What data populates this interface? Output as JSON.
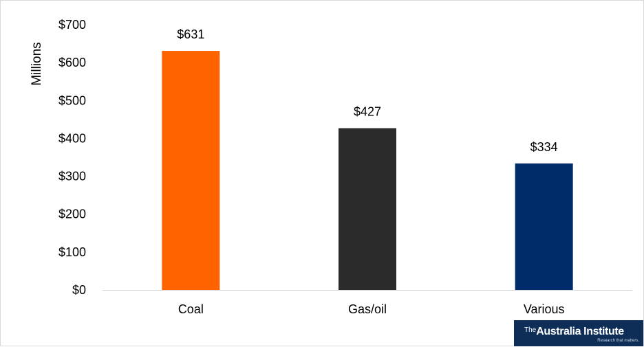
{
  "chart_data": {
    "type": "bar",
    "categories": [
      "Coal",
      "Gas/oil",
      "Various"
    ],
    "values": [
      631,
      427,
      334
    ],
    "data_labels": [
      "$631",
      "$427",
      "$334"
    ],
    "colors": [
      "#ff6300",
      "#2b2b2b",
      "#002c6a"
    ],
    "title": "",
    "xlabel": "",
    "ylabel": "Millions",
    "ylim": [
      0,
      700
    ],
    "yticks": [
      0,
      100,
      200,
      300,
      400,
      500,
      600,
      700
    ],
    "ytick_labels": [
      "$0",
      "$100",
      "$200",
      "$300",
      "$400",
      "$500",
      "$600",
      "$700"
    ],
    "grid": false,
    "legend": "none"
  },
  "logo": {
    "prefix": "The",
    "name": "Australia Institute",
    "tagline": "Research that matters."
  }
}
